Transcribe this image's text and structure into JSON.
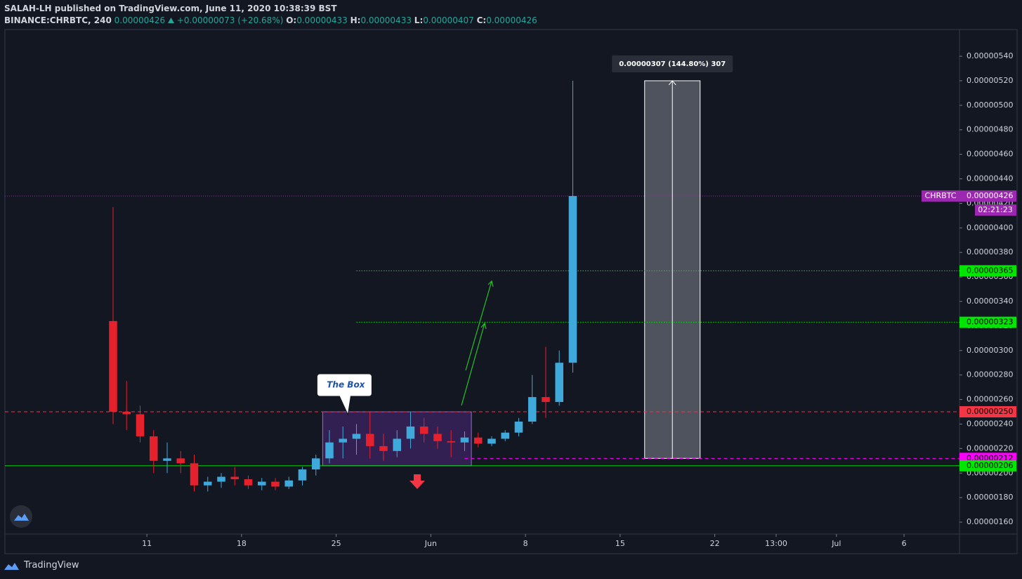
{
  "header": {
    "publisher": "SALAH-LH published on TradingView.com, June 11, 2020 10:38:39 BST",
    "symbol": "BINANCE:CHRBTC, 240",
    "last": "0.00000426",
    "change": "+0.00000073 (+20.68%)",
    "ohlc": [
      {
        "key": "O:",
        "value": "0.00000433"
      },
      {
        "key": "H:",
        "value": "0.00000433"
      },
      {
        "key": "L:",
        "value": "0.00000407"
      },
      {
        "key": "C:",
        "value": "0.00000426"
      }
    ]
  },
  "footer": {
    "brand": "TradingView"
  },
  "chart_data": {
    "type": "candlestick",
    "up_color": "#3fa9dc",
    "down_color": "#e5212d",
    "x": [
      "2020-05-08T12:00",
      "2020-05-09T12:00",
      "2020-05-10T12:00",
      "2020-05-11T12:00",
      "2020-05-12T12:00",
      "2020-05-13T12:00",
      "2020-05-14T12:00",
      "2020-05-15T12:00",
      "2020-05-16T12:00",
      "2020-05-17T12:00",
      "2020-05-18T12:00",
      "2020-05-19T12:00",
      "2020-05-20T12:00",
      "2020-05-21T12:00",
      "2020-05-22T12:00",
      "2020-05-23T12:00",
      "2020-05-24T12:00",
      "2020-05-25T12:00",
      "2020-05-26T12:00",
      "2020-05-27T12:00",
      "2020-05-28T12:00",
      "2020-05-29T12:00",
      "2020-05-30T12:00",
      "2020-05-31T12:00",
      "2020-06-01T12:00",
      "2020-06-02T12:00",
      "2020-06-03T12:00",
      "2020-06-04T12:00",
      "2020-06-05T12:00",
      "2020-06-06T12:00",
      "2020-06-07T12:00",
      "2020-06-08T12:00",
      "2020-06-09T12:00",
      "2020-06-10T12:00",
      "2020-06-11T12:00"
    ],
    "open": [
      3.24e-06,
      2.5e-06,
      2.48e-06,
      2.3e-06,
      2.1e-06,
      2.12e-06,
      2.08e-06,
      1.9e-06,
      1.93e-06,
      1.97e-06,
      1.95e-06,
      1.9e-06,
      1.93e-06,
      1.89e-06,
      1.94e-06,
      2.03e-06,
      2.12e-06,
      2.25e-06,
      2.28e-06,
      2.32e-06,
      2.22e-06,
      2.18e-06,
      2.28e-06,
      2.38e-06,
      2.32e-06,
      2.26e-06,
      2.25e-06,
      2.29e-06,
      2.24e-06,
      2.28e-06,
      2.33e-06,
      2.42e-06,
      2.62e-06,
      2.58e-06,
      2.9e-06
    ],
    "high": [
      4.17e-06,
      2.75e-06,
      2.55e-06,
      2.35e-06,
      2.25e-06,
      2.18e-06,
      2.15e-06,
      1.97e-06,
      2e-06,
      2.05e-06,
      1.98e-06,
      1.96e-06,
      1.96e-06,
      1.97e-06,
      2.05e-06,
      2.15e-06,
      2.35e-06,
      2.38e-06,
      2.4e-06,
      2.5e-06,
      2.32e-06,
      2.35e-06,
      2.5e-06,
      2.45e-06,
      2.38e-06,
      2.35e-06,
      2.34e-06,
      2.33e-06,
      2.3e-06,
      2.35e-06,
      2.45e-06,
      2.8e-06,
      3.03e-06,
      3e-06,
      5.2e-06
    ],
    "low": [
      2.4e-06,
      2.35e-06,
      2.25e-06,
      2e-06,
      2e-06,
      2e-06,
      1.85e-06,
      1.85e-06,
      1.88e-06,
      1.9e-06,
      1.87e-06,
      1.86e-06,
      1.86e-06,
      1.87e-06,
      1.9e-06,
      1.98e-06,
      2.08e-06,
      2.12e-06,
      2.15e-06,
      2.12e-06,
      2.1e-06,
      2.13e-06,
      2.2e-06,
      2.25e-06,
      2.2e-06,
      2.13e-06,
      2.18e-06,
      2.21e-06,
      2.22e-06,
      2.26e-06,
      2.3e-06,
      2.4e-06,
      2.45e-06,
      2.55e-06,
      2.82e-06
    ],
    "close": [
      2.5e-06,
      2.48e-06,
      2.3e-06,
      2.1e-06,
      2.12e-06,
      2.08e-06,
      1.9e-06,
      1.93e-06,
      1.97e-06,
      1.95e-06,
      1.9e-06,
      1.93e-06,
      1.89e-06,
      1.94e-06,
      2.03e-06,
      2.12e-06,
      2.25e-06,
      2.28e-06,
      2.32e-06,
      2.22e-06,
      2.18e-06,
      2.28e-06,
      2.38e-06,
      2.32e-06,
      2.26e-06,
      2.25e-06,
      2.29e-06,
      2.24e-06,
      2.28e-06,
      2.33e-06,
      2.42e-06,
      2.62e-06,
      2.58e-06,
      2.9e-06,
      4.26e-06
    ],
    "xlim": [
      "2020-04-30T12:00",
      "2020-07-10T02:24"
    ],
    "xticks": [
      {
        "value": "2020-05-11",
        "label": "11"
      },
      {
        "value": "2020-05-18",
        "label": "18"
      },
      {
        "value": "2020-05-25",
        "label": "25"
      },
      {
        "value": "2020-06-01",
        "label": "Jun"
      },
      {
        "value": "2020-06-08",
        "label": "8"
      },
      {
        "value": "2020-06-15",
        "label": "15"
      },
      {
        "value": "2020-06-22",
        "label": "22"
      },
      {
        "value": "2020-06-26T13:00",
        "label": "13:00"
      },
      {
        "value": "2020-07-01",
        "label": "Jul"
      },
      {
        "value": "2020-07-06",
        "label": "6"
      }
    ],
    "ylim": [
      1.503e-06,
      5.618e-06
    ],
    "yticks": [
      {
        "value": 1.6e-06,
        "label": "0.00000160"
      },
      {
        "value": 1.8e-06,
        "label": "0.00000180"
      },
      {
        "value": 2e-06,
        "label": "0.00000200"
      },
      {
        "value": 2.2e-06,
        "label": "0.00000220"
      },
      {
        "value": 2.4e-06,
        "label": "0.00000240"
      },
      {
        "value": 2.6e-06,
        "label": "0.00000260"
      },
      {
        "value": 2.8e-06,
        "label": "0.00000280"
      },
      {
        "value": 3e-06,
        "label": "0.00000300"
      },
      {
        "value": 3.2e-06,
        "label": "0.00000320"
      },
      {
        "value": 3.4e-06,
        "label": "0.00000340"
      },
      {
        "value": 3.6e-06,
        "label": "0.00000360"
      },
      {
        "value": 3.8e-06,
        "label": "0.00000380"
      },
      {
        "value": 4e-06,
        "label": "0.00000400"
      },
      {
        "value": 4.2e-06,
        "label": "0.00000420"
      },
      {
        "value": 4.4e-06,
        "label": "0.00000440"
      },
      {
        "value": 4.6e-06,
        "label": "0.00000460"
      },
      {
        "value": 4.8e-06,
        "label": "0.00000480"
      },
      {
        "value": 5e-06,
        "label": "0.00000500"
      },
      {
        "value": 5.2e-06,
        "label": "0.00000520"
      },
      {
        "value": 5.4e-06,
        "label": "0.00000540"
      }
    ],
    "price_lines": [
      {
        "value": 3.65e-06,
        "label": "0.00000365",
        "color": "#00e600",
        "style": "dotted",
        "start": "2020-05-26T12:00"
      },
      {
        "value": 3.23e-06,
        "label": "0.00000323",
        "color": "#00e600",
        "style": "dotted",
        "start": "2020-05-26T12:00"
      },
      {
        "value": 2.5e-06,
        "label": "0.00000250",
        "color": "#f23645",
        "style": "dashed",
        "start": null
      },
      {
        "value": 2.12e-06,
        "label": "0.00000212",
        "color": "#ff00ff",
        "style": "dashed",
        "start": "2020-06-03T12:00"
      },
      {
        "value": 2.06e-06,
        "label": "0.00000206",
        "color": "#00e600",
        "style": "solid",
        "start": null
      }
    ],
    "last_price": {
      "symbol": "CHRBTC",
      "value": 4.26e-06,
      "label": "0.00000426",
      "countdown": "02:21:23",
      "color": "#9c27b0"
    },
    "box": {
      "label": "The Box",
      "x": [
        "2020-05-24T00:00",
        "2020-06-04T00:00"
      ],
      "y": [
        2.06e-06,
        2.5e-06
      ]
    },
    "measure": {
      "label": "0.00000307 (144.80%) 307",
      "x": [
        "2020-06-16T19:30",
        "2020-06-20T22:00"
      ],
      "y": [
        2.12e-06,
        5.2e-06
      ]
    }
  }
}
